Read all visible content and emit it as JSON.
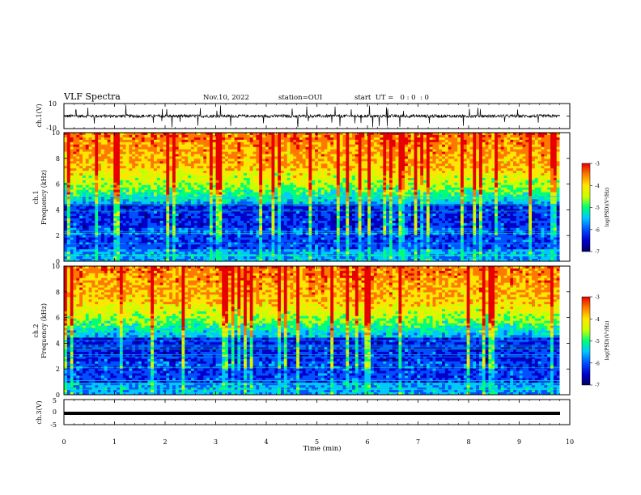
{
  "header": {
    "title": "VLF Spectra",
    "date": "Nov.10, 2022",
    "station": "station=OUI",
    "start": "start  UT =   0 : 0  : 0"
  },
  "colors": {
    "spectrogram_scale": [
      "#000066",
      "#0000c8",
      "#0050ff",
      "#00c8ff",
      "#00ff78",
      "#c8ff00",
      "#ffe600",
      "#ff7800",
      "#e60000"
    ],
    "trace": "#000000"
  },
  "chart_data": [
    {
      "type": "line",
      "name": "ch1-waveform",
      "ylabel": "ch.1(V)",
      "ylim": [
        -10,
        10
      ],
      "yticks": [
        "10",
        "-10"
      ],
      "xlim": [
        0,
        10
      ],
      "approx_level": 0,
      "approx_noise_band": [
        -3,
        3
      ]
    },
    {
      "type": "heatmap",
      "name": "ch1-spectrogram",
      "ylabel": "ch.1 Frequency (kHz)",
      "ylabel_line1": "ch.1",
      "ylabel_line2": "Frequency (kHz)",
      "ylim": [
        0,
        10
      ],
      "yticks": [
        0,
        2,
        4,
        6,
        8,
        10
      ],
      "xlim": [
        0,
        9.8
      ],
      "colorbar": {
        "label": "log(PSD)(V²/Hz)",
        "range": [
          -7,
          -3
        ],
        "ticks": [
          -3,
          -4,
          -5,
          -6,
          -7
        ]
      }
    },
    {
      "type": "heatmap",
      "name": "ch2-spectrogram",
      "ylabel": "ch.2 Frequency (kHz)",
      "ylabel_line1": "ch.2",
      "ylabel_line2": "Frequency (kHz)",
      "ylim": [
        0,
        10
      ],
      "yticks": [
        0,
        2,
        4,
        6,
        8,
        10
      ],
      "xlim": [
        0,
        9.8
      ],
      "colorbar": {
        "label": "log(PSD)(V²/Hz)",
        "range": [
          -7,
          -3
        ],
        "ticks": [
          -3,
          -4,
          -5,
          -6,
          -7
        ]
      }
    },
    {
      "type": "line",
      "name": "ch3-waveform",
      "ylabel": "ch.3(V)",
      "ylim": [
        -5,
        5
      ],
      "yticks": [
        "5",
        "0",
        "-5"
      ],
      "xlim": [
        0,
        10
      ],
      "approx_level": -1
    }
  ],
  "xaxis": {
    "label": "Time (min)",
    "range": [
      0,
      10
    ],
    "ticks": [
      "0",
      "1",
      "2",
      "3",
      "4",
      "5",
      "6",
      "7",
      "8",
      "9",
      "10"
    ]
  },
  "colorbar_label": "log(PSD)(V²/Hz)",
  "colorbar_ticks": [
    "-3",
    "-4",
    "-5",
    "-6",
    "-7"
  ]
}
